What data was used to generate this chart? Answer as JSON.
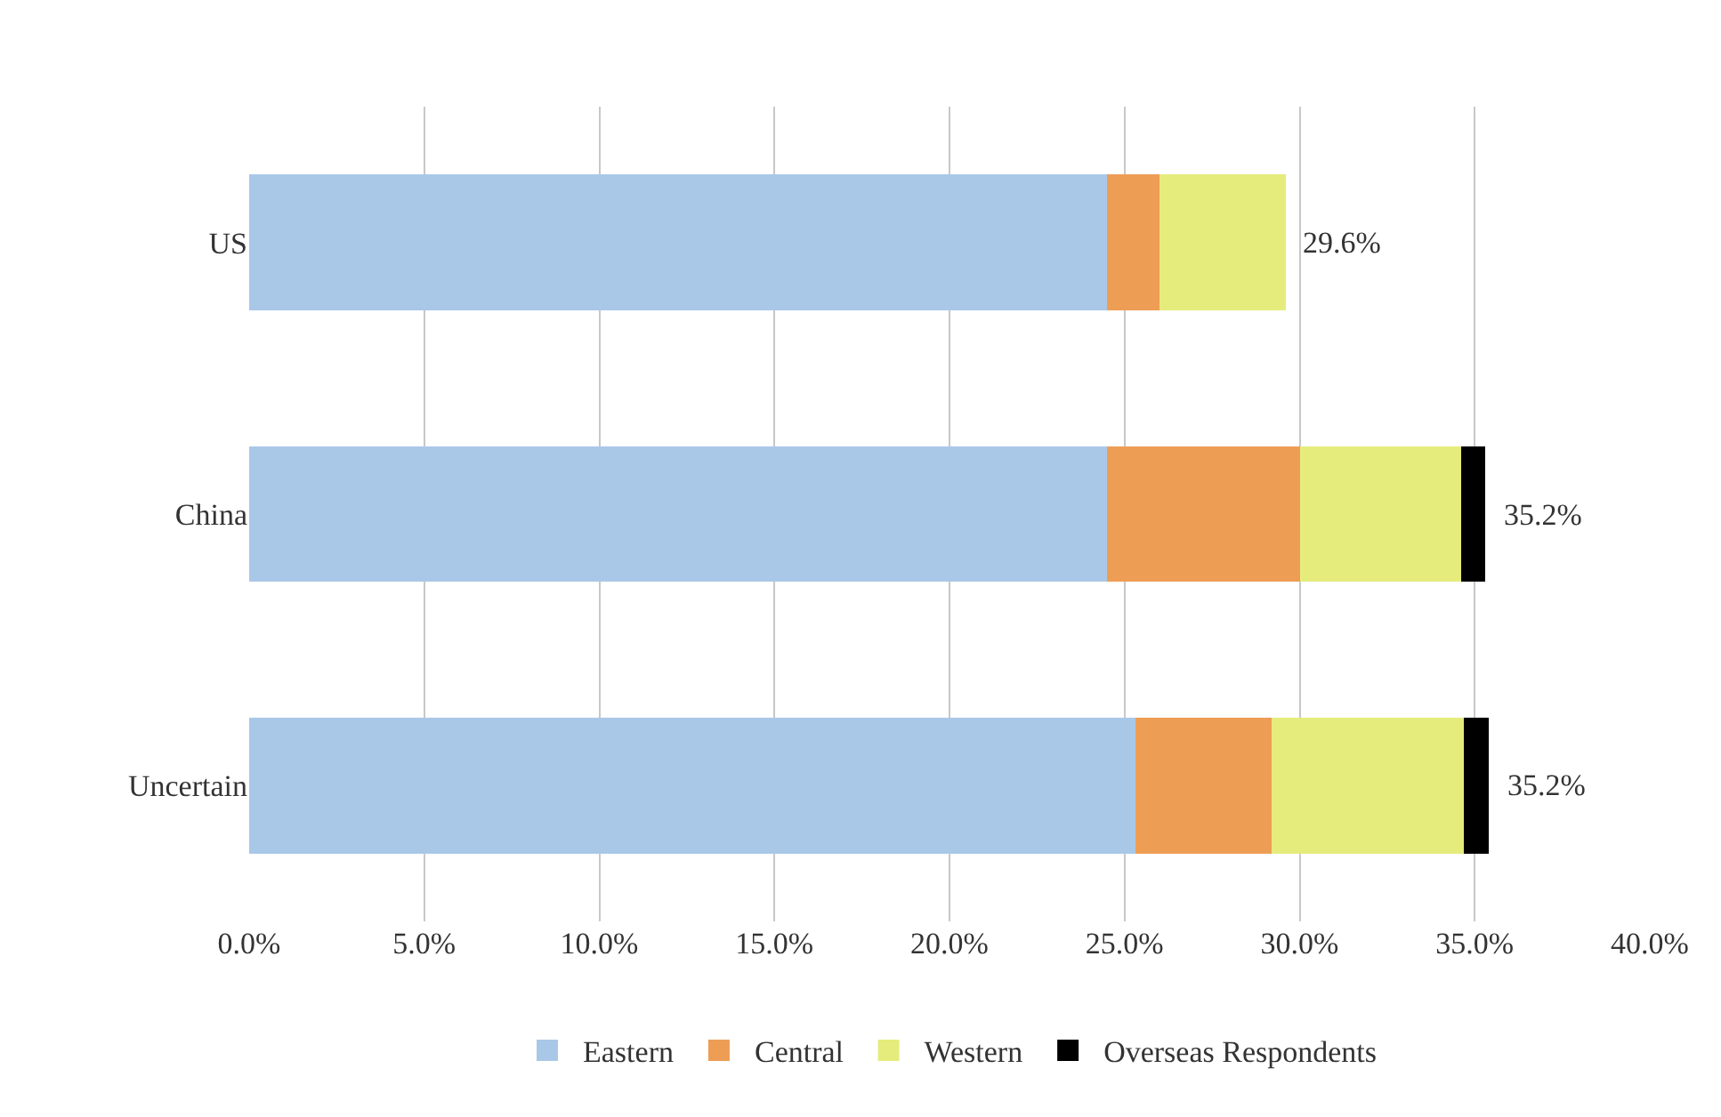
{
  "chart_data": {
    "type": "bar",
    "orientation": "horizontal",
    "stacked": true,
    "categories": [
      "US",
      "China",
      "Uncertain"
    ],
    "series": [
      {
        "name": "Eastern",
        "color": "#a9c8e8",
        "values": [
          24.5,
          24.5,
          25.3
        ]
      },
      {
        "name": "Central",
        "color": "#ee9d55",
        "values": [
          1.5,
          5.5,
          3.9
        ]
      },
      {
        "name": "Western",
        "color": "#e5ec7c",
        "values": [
          3.6,
          4.6,
          5.5
        ]
      },
      {
        "name": "Overseas Respondents",
        "color": "#000000",
        "values": [
          null,
          0.7,
          0.7
        ]
      }
    ],
    "totals": [
      "29.6%",
      "35.2%",
      "35.2%"
    ],
    "xlim": [
      0,
      40
    ],
    "xticks": [
      {
        "value": 0,
        "label": "0.0%"
      },
      {
        "value": 5,
        "label": "5.0%"
      },
      {
        "value": 10,
        "label": "10.0%"
      },
      {
        "value": 15,
        "label": "15.0%"
      },
      {
        "value": 20,
        "label": "20.0%"
      },
      {
        "value": 25,
        "label": "25.0%"
      },
      {
        "value": 30,
        "label": "30.0%"
      },
      {
        "value": 35,
        "label": "35.0%"
      },
      {
        "value": 40,
        "label": "40.0%"
      }
    ],
    "grid": "x",
    "legend": "bottom"
  }
}
